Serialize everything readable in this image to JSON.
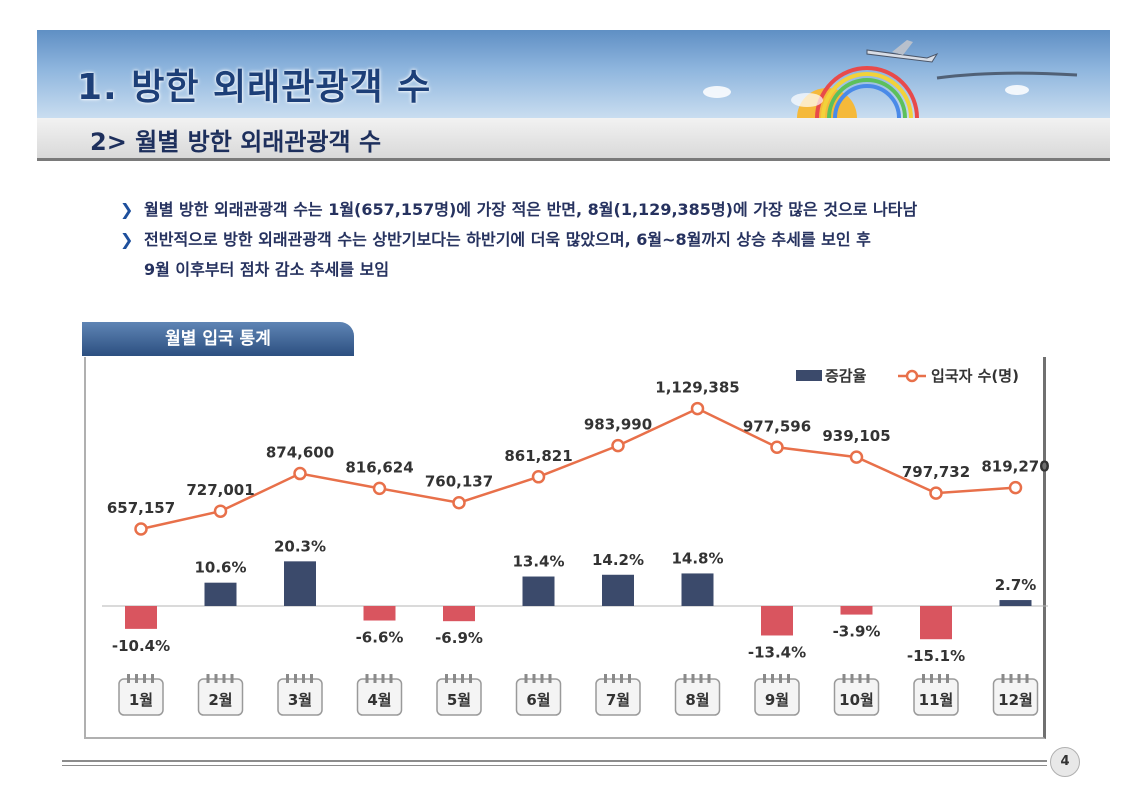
{
  "header": {
    "title": "1. 방한 외래관광객 수",
    "subtitle": "2> 월별 방한 외래관광객 수"
  },
  "bullets": [
    "월별 방한 외래관광객 수는 1월(657,157명)에 가장 적은 반면, 8월(1,129,385명)에 가장 많은 것으로 나타남",
    "전반적으로 방한 외래관광객 수는 상반기보다는 하반기에 더욱 많았으며, 6월~8월까지 상승 추세를 보인 후",
    "9월 이후부터 점차 감소 추세를 보임"
  ],
  "section_label": "월별 입국 통계",
  "page_number": "4",
  "colors": {
    "bar_positive": "#3b4a6b",
    "bar_negative": "#d9555f",
    "line": "#e8704a",
    "title_text": "#1d3f78"
  },
  "chart_data": {
    "type": "bar",
    "categories": [
      "1월",
      "2월",
      "3월",
      "4월",
      "5월",
      "6월",
      "7월",
      "8월",
      "9월",
      "10월",
      "11월",
      "12월"
    ],
    "series": [
      {
        "name": "증감율",
        "type": "bar",
        "values": [
          -10.4,
          10.6,
          20.3,
          -6.6,
          -6.9,
          13.4,
          14.2,
          14.8,
          -13.4,
          -3.9,
          -15.1,
          2.7
        ],
        "labels": [
          "-10.4%",
          "10.6%",
          "20.3%",
          "-6.6%",
          "-6.9%",
          "13.4%",
          "14.2%",
          "14.8%",
          "-13.4%",
          "-3.9%",
          "-15.1%",
          "2.7%"
        ]
      },
      {
        "name": "입국자 수(명)",
        "type": "line",
        "values": [
          657157,
          727001,
          874600,
          816624,
          760137,
          861821,
          983990,
          1129385,
          977596,
          939105,
          797732,
          819270
        ],
        "labels": [
          "657,157",
          "727,001",
          "874,600",
          "816,624",
          "760,137",
          "861,821",
          "983,990",
          "1,129,385",
          "977,596",
          "939,105",
          "797,732",
          "819,270"
        ]
      }
    ],
    "legend_position": "top-right",
    "grid": false
  }
}
